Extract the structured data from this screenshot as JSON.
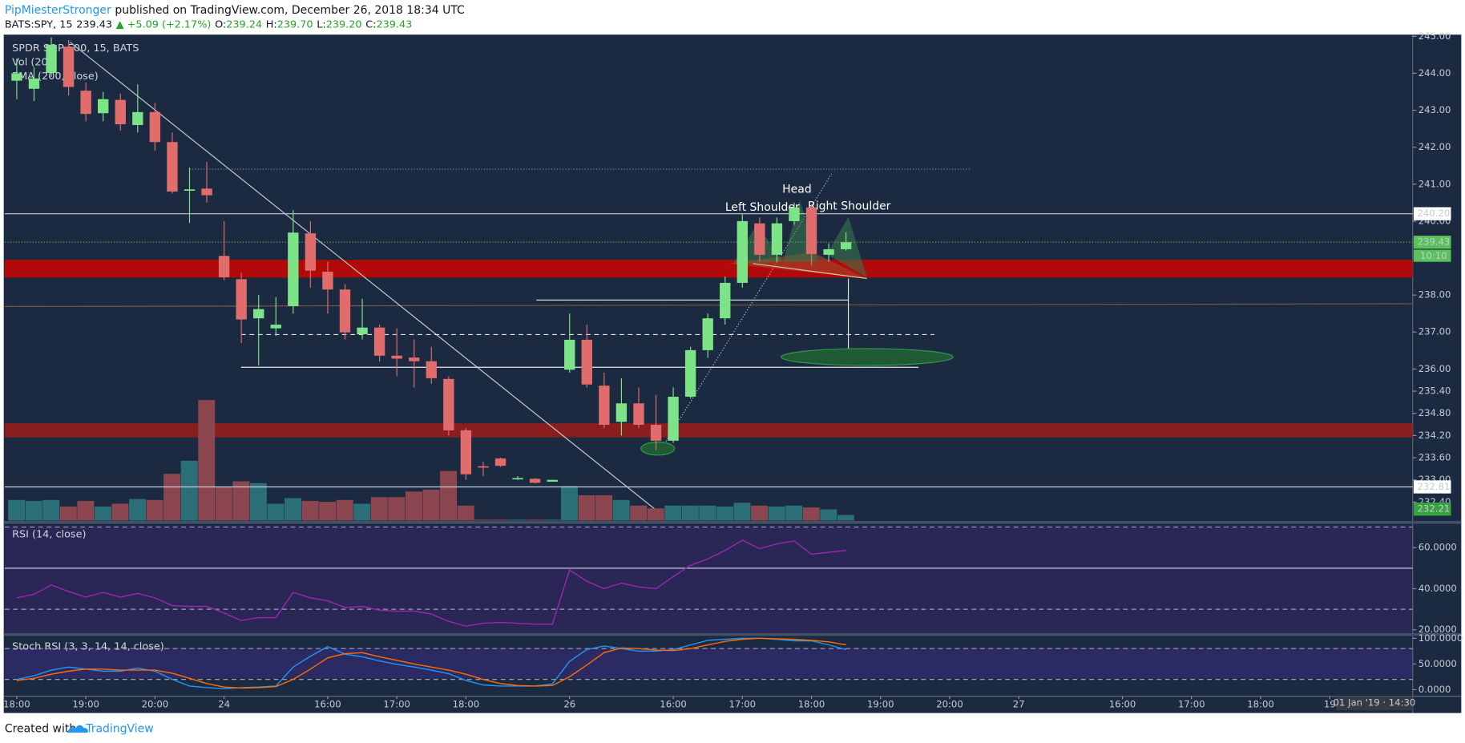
{
  "header": {
    "author": "PipMiesterStronger",
    "published": "published on TradingView.com, December 26, 2018 18:34 UTC",
    "symbol": "BATS:SPY, 15",
    "last": "239.43",
    "change": "▲ +5.09 (+2.17%)",
    "ohlc": [
      {
        "label": "O:",
        "value": "239.24"
      },
      {
        "label": "H:",
        "value": "239.70"
      },
      {
        "label": "L:",
        "value": "239.20"
      },
      {
        "label": "C:",
        "value": "239.43"
      }
    ]
  },
  "footer": {
    "created": "Created with",
    "brand": "TradingView"
  },
  "chart_data": [
    {
      "type": "candlestick",
      "title": "SPDR S&P 500, 15, BATS",
      "ema_name": "EMA (200, close)",
      "up_color": "#7ce486",
      "down_color": "#e06c6c",
      "x": [
        0,
        1,
        2,
        3,
        4,
        5,
        6,
        7,
        8,
        9,
        10,
        11,
        12,
        13,
        14,
        15,
        16,
        17,
        18,
        19,
        20,
        21,
        22,
        23,
        24,
        25,
        26,
        27,
        28,
        29,
        30,
        31,
        32,
        33,
        34,
        35,
        36,
        37,
        38,
        39,
        40,
        41,
        42,
        43,
        44,
        45,
        46,
        47,
        48
      ],
      "open": [
        243.8,
        243.58,
        244.01,
        244.72,
        243.53,
        242.92,
        243.28,
        242.6,
        242.95,
        242.14,
        240.85,
        240.88,
        239.06,
        238.43,
        237.37,
        237.1,
        237.7,
        239.67,
        238.63,
        238.15,
        236.94,
        237.12,
        236.36,
        236.31,
        236.21,
        235.73,
        234.34,
        233.37,
        233.58,
        233.05,
        233.03,
        232.95,
        235.98,
        236.79,
        235.55,
        234.57,
        235.07,
        234.49,
        234.06,
        235.25,
        236.51,
        237.37,
        238.33,
        239.94,
        239.09,
        240,
        240.37,
        239.09,
        239.24
      ],
      "high": [
        244.4,
        244.16,
        244.97,
        244.9,
        243.75,
        243.5,
        243.45,
        243.7,
        243.2,
        242.4,
        241.45,
        241.6,
        240,
        238.6,
        238,
        237.95,
        240.3,
        240,
        238.9,
        238.3,
        237.9,
        237.2,
        237.1,
        236.8,
        236.6,
        235.8,
        234.4,
        233.5,
        233.6,
        233.1,
        233.05,
        233,
        237.5,
        237.2,
        235.9,
        235.75,
        235.5,
        235.3,
        235.5,
        236.6,
        237.5,
        238.5,
        240.2,
        240.1,
        240.1,
        240.5,
        240.45,
        239.4,
        239.7
      ],
      "low": [
        243.3,
        243.25,
        243.9,
        243.4,
        242.7,
        242.7,
        242.45,
        242.4,
        241.9,
        240.75,
        239.95,
        240.5,
        238.4,
        236.7,
        236.1,
        236.9,
        237.5,
        238.2,
        237.5,
        236.8,
        236.8,
        236.2,
        235.8,
        235.5,
        235.6,
        234.2,
        233,
        233.1,
        233.35,
        233,
        232.9,
        232.95,
        235.9,
        235.5,
        234.4,
        234.2,
        234.4,
        233.8,
        234,
        235.2,
        236.3,
        237.2,
        238.2,
        238.9,
        238.9,
        239.9,
        238.8,
        238.9,
        239.2
      ],
      "close": [
        244,
        243.86,
        244.77,
        243.63,
        242.9,
        243.3,
        242.62,
        242.95,
        242.14,
        240.8,
        240.86,
        240.7,
        238.48,
        237.34,
        237.62,
        237.2,
        239.69,
        238.66,
        238.15,
        236.99,
        237.12,
        236.36,
        236.28,
        236.21,
        235.75,
        234.34,
        233.15,
        233.35,
        233.38,
        233.05,
        232.92,
        233,
        236.79,
        235.58,
        234.49,
        235.07,
        234.49,
        234.06,
        235.25,
        236.51,
        237.37,
        238.33,
        240,
        239.09,
        239.94,
        240.37,
        239.11,
        239.24,
        239.43
      ],
      "volume": {
        "name": "Vol (20)",
        "up_color": "#2b6f78",
        "down_color": "#8c4650",
        "values": [
          22,
          21,
          22,
          15,
          21,
          15,
          18,
          23,
          22,
          50,
          64,
          129,
          36,
          42,
          40,
          18,
          24,
          21,
          20,
          22,
          18,
          25,
          25,
          31,
          33,
          53,
          16,
          1,
          1,
          1,
          1,
          1,
          37,
          27,
          27,
          22,
          16,
          13,
          16,
          16,
          16,
          15,
          19,
          16,
          15,
          16,
          14,
          12,
          6
        ]
      },
      "xlim": [
        -0.7,
        80.8
      ],
      "xticks": [
        {
          "value": 0,
          "label": "18:00"
        },
        {
          "value": 4,
          "label": "19:00"
        },
        {
          "value": 8,
          "label": "20:00"
        },
        {
          "value": 12,
          "label": "24"
        },
        {
          "value": 18,
          "label": "16:00"
        },
        {
          "value": 22,
          "label": "17:00"
        },
        {
          "value": 26,
          "label": "18:00"
        },
        {
          "value": 32,
          "label": "26"
        },
        {
          "value": 38,
          "label": "16:00"
        },
        {
          "value": 42,
          "label": "17:00"
        },
        {
          "value": 46,
          "label": "18:00"
        },
        {
          "value": 50,
          "label": "19:00"
        },
        {
          "value": 54,
          "label": "20:00"
        },
        {
          "value": 58,
          "label": "27"
        },
        {
          "value": 64,
          "label": "16:00"
        },
        {
          "value": 68,
          "label": "17:00"
        },
        {
          "value": 72,
          "label": "18:00"
        },
        {
          "value": 76,
          "label": "19"
        }
      ],
      "cursor_label": "01 Jan '19 · 14:30",
      "ylim": [
        231.9,
        245.02
      ],
      "yticks": [
        {
          "value": 245,
          "label": "245.00"
        },
        {
          "value": 244,
          "label": "244.00"
        },
        {
          "value": 243,
          "label": "243.00"
        },
        {
          "value": 242,
          "label": "242.00"
        },
        {
          "value": 241,
          "label": "241.00"
        },
        {
          "value": 240,
          "label": "240.00"
        },
        {
          "value": 238,
          "label": "238.00"
        },
        {
          "value": 237,
          "label": "237.00"
        },
        {
          "value": 236,
          "label": "236.00"
        },
        {
          "value": 235.4,
          "label": "235.40"
        },
        {
          "value": 234.8,
          "label": "234.80"
        },
        {
          "value": 234.2,
          "label": "234.20"
        },
        {
          "value": 233.6,
          "label": "233.60"
        },
        {
          "value": 233,
          "label": "233.00"
        },
        {
          "value": 232.4,
          "label": "232.40"
        }
      ],
      "price_labels": [
        {
          "value": 240.2,
          "label": "240.20",
          "color": "#ffffff",
          "line": "#c8ccd4"
        },
        {
          "value": 239.43,
          "label": "239.43",
          "color": "#59c25a",
          "line": "#59c25a"
        },
        {
          "value": 232.81,
          "label": "232.81",
          "color": "#ffffff",
          "line": "#c8ccd4"
        },
        {
          "value": 232.21,
          "label": "232.21",
          "color": "#3aa23f",
          "line": null
        }
      ],
      "countdown": "10:10",
      "annotations": [
        "Left Shoulder",
        "Head",
        "Right Shoulder"
      ]
    },
    {
      "type": "line",
      "title": "RSI (14, close)",
      "color": "#9c27b0",
      "values": [
        35.5,
        37.3,
        41.8,
        38.6,
        35.9,
        38.2,
        35.9,
        37.7,
        35.5,
        31.8,
        31.4,
        31.4,
        28.2,
        24.5,
        25.9,
        25.9,
        38.2,
        35.5,
        34.1,
        30.9,
        31.4,
        29.5,
        29.1,
        29.1,
        27.7,
        24.1,
        21.8,
        23.2,
        23.6,
        23.2,
        22.7,
        22.7,
        49.1,
        43.6,
        40,
        42.7,
        40.9,
        40,
        45.9,
        51.4,
        54.5,
        58.6,
        63.6,
        59.5,
        61.8,
        63.2,
        56.8,
        57.7,
        58.6
      ],
      "ylim": [
        18.6,
        70.9
      ],
      "levels": [
        70,
        30
      ],
      "yticks": [
        {
          "value": 60,
          "label": "60.0000"
        },
        {
          "value": 40,
          "label": "40.0000"
        },
        {
          "value": 20,
          "label": "20.0000"
        }
      ]
    },
    {
      "type": "line",
      "title": "Stoch RSI (3, 3, 14, 14, close)",
      "series": [
        {
          "color": "#2196f3",
          "values": [
            20,
            27,
            38,
            44,
            40,
            36,
            36,
            42,
            36,
            20,
            7,
            4,
            2,
            4,
            5,
            7,
            44,
            65,
            84,
            69,
            64,
            56,
            49,
            44,
            38,
            31,
            18,
            9,
            7,
            7,
            7,
            11,
            55,
            78,
            85,
            80,
            75,
            75,
            78,
            87,
            96,
            98,
            100,
            100,
            98,
            95,
            95,
            87,
            78
          ]
        },
        {
          "color": "#ff6d00",
          "values": [
            18,
            22,
            30,
            36,
            40,
            40,
            38,
            38,
            38,
            32,
            22,
            12,
            5,
            3,
            4,
            6,
            20,
            40,
            62,
            70,
            72,
            64,
            57,
            50,
            44,
            38,
            30,
            20,
            12,
            8,
            7,
            8,
            25,
            48,
            72,
            81,
            80,
            77,
            76,
            80,
            87,
            94,
            98,
            100,
            99,
            98,
            96,
            93,
            87
          ]
        }
      ],
      "ylim": [
        -7.3,
        101.8
      ],
      "levels": [
        80,
        20
      ],
      "yticks": [
        {
          "value": 100,
          "label": "100.0000"
        },
        {
          "value": 50,
          "label": "50.0000"
        },
        {
          "value": 0,
          "label": "0.0000"
        }
      ]
    }
  ]
}
